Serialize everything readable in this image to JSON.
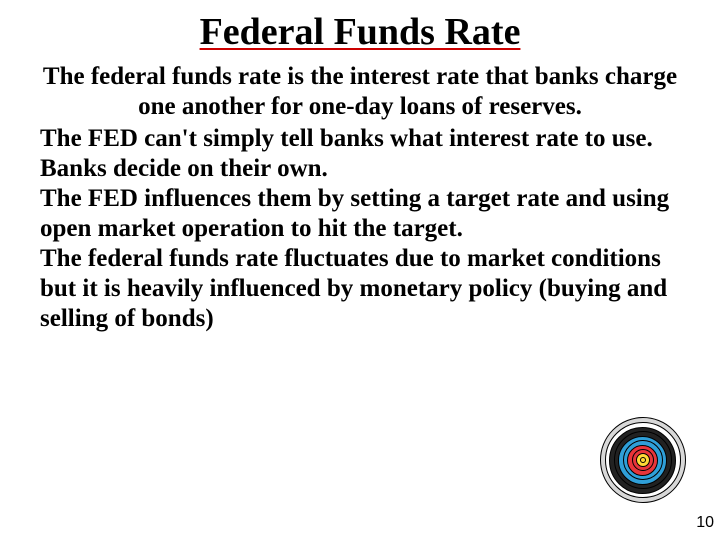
{
  "title": "Federal Funds Rate",
  "intro": "The federal funds rate is the interest rate that banks charge one another for one-day loans of reserves.",
  "paragraphs": [
    "The FED can't simply tell banks what interest rate to use. Banks decide on their own.",
    "The FED influences them by setting a target rate and using open market operation to hit the target.",
    "The federal funds rate fluctuates due to market conditions but it is heavily influenced by monetary policy (buying and selling of bonds)"
  ],
  "page_number": "10",
  "target": {
    "background": "#ffffff",
    "rings": [
      {
        "size": 86,
        "color": "#d8d8d8"
      },
      {
        "size": 76,
        "color": "#ffffff"
      },
      {
        "size": 67,
        "color": "#222222"
      },
      {
        "size": 58,
        "color": "#222222"
      },
      {
        "size": 49,
        "color": "#2f9fd8"
      },
      {
        "size": 40,
        "color": "#2f9fd8"
      },
      {
        "size": 31,
        "color": "#e8353a"
      },
      {
        "size": 22,
        "color": "#e8353a"
      },
      {
        "size": 14,
        "color": "#ffd936"
      },
      {
        "size": 6,
        "color": "#ffd936"
      }
    ]
  },
  "colors": {
    "title_underline": "#cc0000",
    "text": "#000000",
    "background": "#ffffff"
  }
}
